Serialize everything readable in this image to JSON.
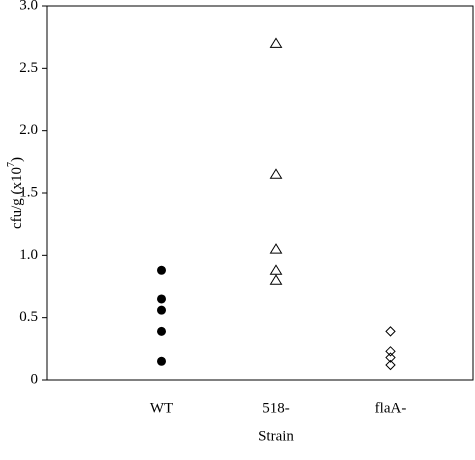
{
  "chart_data": {
    "type": "dot",
    "y_label": "cfu/g (x10",
    "y_label_exp": "7",
    "y_label_end": ")",
    "x_label": "Strain",
    "groups": [
      {
        "category": "WT",
        "marker": "circle-filled",
        "values": [
          0.88,
          0.65,
          0.56,
          0.39,
          0.15
        ]
      },
      {
        "category": "518-",
        "marker": "triangle-open",
        "values": [
          2.7,
          1.65,
          1.05,
          0.88,
          0.8
        ]
      },
      {
        "category": "flaA-",
        "marker": "diamond-open",
        "values": [
          0.39,
          0.23,
          0.18,
          0.12
        ]
      }
    ],
    "ylim": [
      0,
      3
    ],
    "yticks": [
      0,
      0.5,
      {
        "value": 1,
        "label": "1.0"
      },
      1.5,
      {
        "value": 2,
        "label": "2.0"
      },
      2.5,
      {
        "value": 3,
        "label": "3.0"
      }
    ],
    "color": "#000000"
  }
}
